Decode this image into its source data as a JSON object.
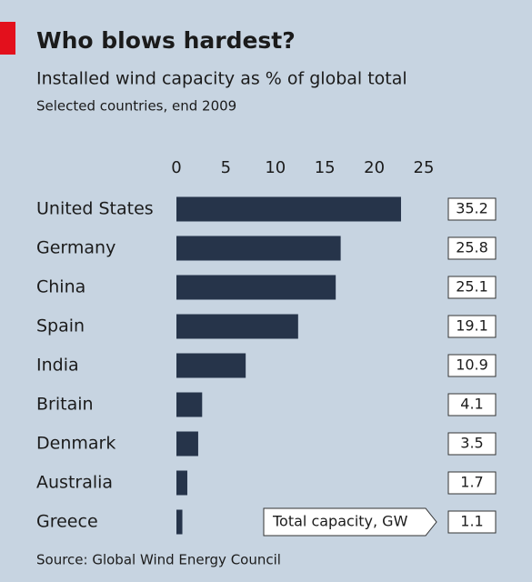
{
  "chart_data": {
    "type": "bar",
    "orientation": "horizontal",
    "title": "Who blows hardest?",
    "subtitle": "Installed wind capacity as % of global total",
    "note": "Selected countries, end 2009",
    "source": "Source: Global Wind Energy Council",
    "categories": [
      "United States",
      "Germany",
      "China",
      "Spain",
      "India",
      "Britain",
      "Denmark",
      "Australia",
      "Greece"
    ],
    "values": [
      22.7,
      16.6,
      16.1,
      12.3,
      7.0,
      2.6,
      2.2,
      1.1,
      0.6
    ],
    "color": "#26344a",
    "xlim": [
      0,
      25
    ],
    "xticks": [
      0,
      5,
      10,
      15,
      20,
      25
    ],
    "grid": false,
    "capacity": {
      "label": "Total capacity, GW",
      "values": [
        35.2,
        25.8,
        25.1,
        19.1,
        10.9,
        4.1,
        3.5,
        1.7,
        1.1
      ]
    }
  }
}
